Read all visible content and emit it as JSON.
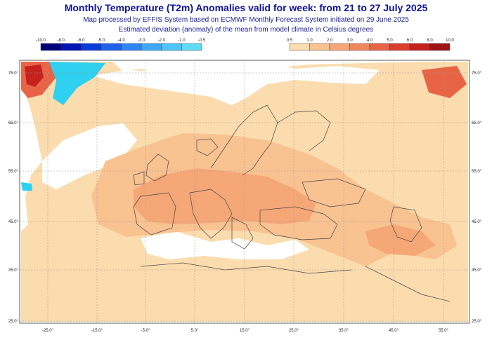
{
  "header": {
    "title": "Monthly Temperature (T2m) Anomalies valid for week: from 21 to 27 July 2025",
    "subtitle_1": "Map processed by EFFIS System based on ECMWF Monthly Forecast System initiated on 29 June 2025",
    "subtitle_2": "Estimated deviation (anomaly) of the mean from model climate in Celsius degrees"
  },
  "legend_cold": {
    "labels": [
      "-10.0",
      "-8.0",
      "-6.0",
      "-5.0",
      "-4.0",
      "-3.0",
      "-2.0",
      "-1.0",
      "-0.5"
    ],
    "colors": [
      "#00007a",
      "#0015b5",
      "#0a3ed6",
      "#1f63eb",
      "#2f85f5",
      "#3fa7f7",
      "#4fc4f7",
      "#5edbf5"
    ]
  },
  "legend_warm": {
    "labels": [
      "0.5",
      "1.0",
      "2.0",
      "3.0",
      "4.0",
      "5.0",
      "6.0",
      "8.0",
      "10.0"
    ],
    "colors": [
      "#fbdcae",
      "#f9c291",
      "#f5a777",
      "#f0865c",
      "#e86446",
      "#dc3c2e",
      "#c5211e",
      "#9e1414"
    ]
  },
  "map": {
    "lon_labels": [
      "-25.0°",
      "-15.0°",
      "-5.0°",
      "5.0°",
      "15.0°",
      "25.0°",
      "35.0°",
      "45.0°",
      "55.0°"
    ],
    "lat_labels": [
      "75.0°",
      "65.0°",
      "55.0°",
      "45.0°",
      "35.0°",
      "25.0°"
    ]
  },
  "colors": {
    "title": "#10109a",
    "ocean": "#ffffff",
    "anomaly_light": "#fbdcae",
    "anomaly_medium": "#f9c291",
    "anomaly_strong": "#f5a777",
    "anomaly_hot": "#f0865c",
    "cold": "#2fd0f0",
    "coast": "#444444",
    "grid": "#999999"
  }
}
